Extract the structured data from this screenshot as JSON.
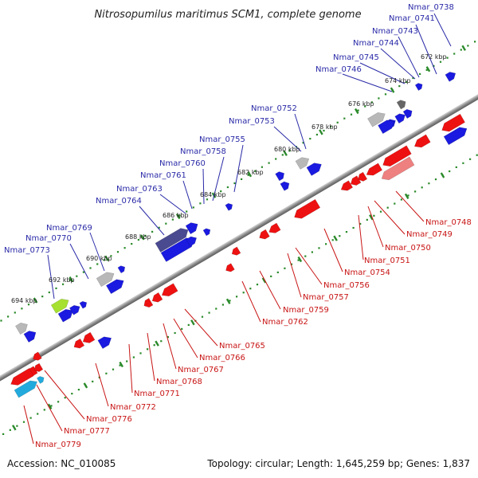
{
  "title": "Nitrosopumilus maritimus SCM1, complete genome",
  "footer": {
    "accession": "Accession: NC_010085",
    "summary": "Topology: circular; Length: 1,645,259 bp; Genes: 1,837"
  },
  "ticks": [
    "672 kbp",
    "674 kbp",
    "676 kbp",
    "678 kbp",
    "680 kbp",
    "682 kbp",
    "684 kbp",
    "686 kbp",
    "688 kbp",
    "690 kbp",
    "692 kbp",
    "694 kbp"
  ],
  "genes_top": [
    "Nmar_0738",
    "Nmar_0741",
    "Nmar_0743",
    "Nmar_0744",
    "Nmar_0745",
    "Nmar_0746",
    "Nmar_0752",
    "Nmar_0753",
    "Nmar_0755",
    "Nmar_0758",
    "Nmar_0760",
    "Nmar_0761",
    "Nmar_0763",
    "Nmar_0764",
    "Nmar_0769",
    "Nmar_0770",
    "Nmar_0773"
  ],
  "genes_bottom": [
    "Nmar_0748",
    "Nmar_0749",
    "Nmar_0750",
    "Nmar_0751",
    "Nmar_0754",
    "Nmar_0756",
    "Nmar_0757",
    "Nmar_0759",
    "Nmar_0762",
    "Nmar_0765",
    "Nmar_0766",
    "Nmar_0767",
    "Nmar_0768",
    "Nmar_0771",
    "Nmar_0772",
    "Nmar_0776",
    "Nmar_0777",
    "Nmar_0779"
  ]
}
